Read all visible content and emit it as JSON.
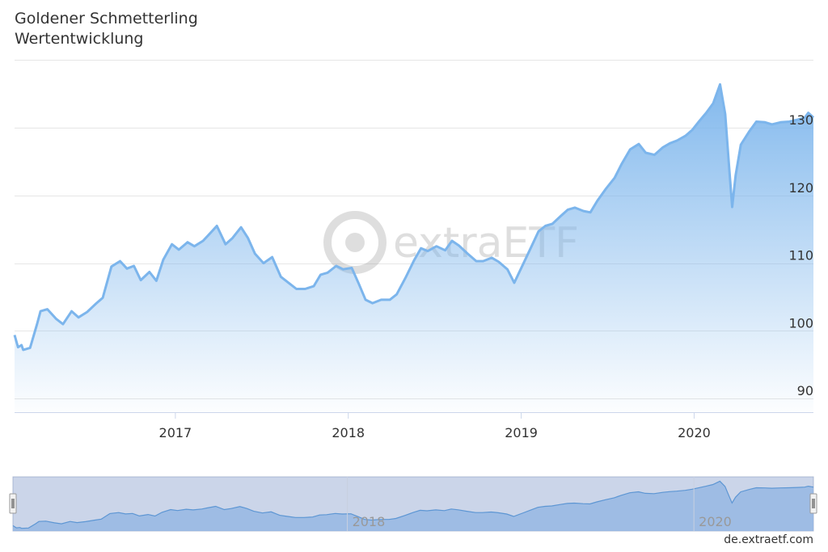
{
  "chart_data": {
    "type": "area",
    "title": "Goldener Schmetterling",
    "subtitle": "Wertentwicklung",
    "xlim": [
      2016.07,
      2020.69
    ],
    "ylim": [
      88,
      138
    ],
    "y_ticks": [
      90,
      100,
      110,
      120,
      130
    ],
    "x_ticks": [
      2017,
      2018,
      2019,
      2020
    ],
    "grid": true,
    "watermark": "extraETF",
    "credits": "de.extraetf.com",
    "series": [
      {
        "color": "#7cb5ec",
        "points": [
          [
            2016.07,
            99.4
          ],
          [
            2016.09,
            97.6
          ],
          [
            2016.11,
            97.9
          ],
          [
            2016.12,
            97.2
          ],
          [
            2016.16,
            97.5
          ],
          [
            2016.2,
            101.0
          ],
          [
            2016.22,
            102.9
          ],
          [
            2016.26,
            103.2
          ],
          [
            2016.31,
            101.8
          ],
          [
            2016.35,
            101.0
          ],
          [
            2016.4,
            102.9
          ],
          [
            2016.44,
            102.0
          ],
          [
            2016.49,
            102.8
          ],
          [
            2016.54,
            104.0
          ],
          [
            2016.58,
            104.9
          ],
          [
            2016.63,
            109.5
          ],
          [
            2016.68,
            110.3
          ],
          [
            2016.72,
            109.2
          ],
          [
            2016.76,
            109.6
          ],
          [
            2016.8,
            107.5
          ],
          [
            2016.85,
            108.7
          ],
          [
            2016.89,
            107.4
          ],
          [
            2016.93,
            110.5
          ],
          [
            2016.98,
            112.8
          ],
          [
            2017.02,
            112.0
          ],
          [
            2017.07,
            113.1
          ],
          [
            2017.11,
            112.5
          ],
          [
            2017.16,
            113.3
          ],
          [
            2017.2,
            114.4
          ],
          [
            2017.24,
            115.5
          ],
          [
            2017.29,
            112.8
          ],
          [
            2017.33,
            113.7
          ],
          [
            2017.38,
            115.3
          ],
          [
            2017.42,
            113.7
          ],
          [
            2017.46,
            111.4
          ],
          [
            2017.51,
            110.0
          ],
          [
            2017.56,
            110.9
          ],
          [
            2017.61,
            108.0
          ],
          [
            2017.66,
            107.0
          ],
          [
            2017.7,
            106.2
          ],
          [
            2017.75,
            106.2
          ],
          [
            2017.8,
            106.6
          ],
          [
            2017.84,
            108.3
          ],
          [
            2017.88,
            108.6
          ],
          [
            2017.93,
            109.6
          ],
          [
            2017.97,
            109.1
          ],
          [
            2018.02,
            109.3
          ],
          [
            2018.06,
            107.0
          ],
          [
            2018.1,
            104.6
          ],
          [
            2018.14,
            104.1
          ],
          [
            2018.19,
            104.6
          ],
          [
            2018.24,
            104.6
          ],
          [
            2018.28,
            105.4
          ],
          [
            2018.33,
            107.8
          ],
          [
            2018.38,
            110.4
          ],
          [
            2018.42,
            112.2
          ],
          [
            2018.46,
            111.8
          ],
          [
            2018.51,
            112.5
          ],
          [
            2018.56,
            111.9
          ],
          [
            2018.6,
            113.3
          ],
          [
            2018.64,
            112.6
          ],
          [
            2018.69,
            111.4
          ],
          [
            2018.74,
            110.3
          ],
          [
            2018.78,
            110.3
          ],
          [
            2018.83,
            110.8
          ],
          [
            2018.87,
            110.2
          ],
          [
            2018.92,
            109.1
          ],
          [
            2018.96,
            107.1
          ],
          [
            2019.01,
            109.8
          ],
          [
            2019.06,
            112.5
          ],
          [
            2019.1,
            114.7
          ],
          [
            2019.14,
            115.5
          ],
          [
            2019.18,
            115.8
          ],
          [
            2019.23,
            117.0
          ],
          [
            2019.27,
            117.9
          ],
          [
            2019.31,
            118.2
          ],
          [
            2019.36,
            117.7
          ],
          [
            2019.4,
            117.5
          ],
          [
            2019.44,
            119.2
          ],
          [
            2019.49,
            121.0
          ],
          [
            2019.54,
            122.6
          ],
          [
            2019.58,
            124.6
          ],
          [
            2019.63,
            126.8
          ],
          [
            2019.68,
            127.6
          ],
          [
            2019.72,
            126.3
          ],
          [
            2019.77,
            126.0
          ],
          [
            2019.82,
            127.1
          ],
          [
            2019.86,
            127.7
          ],
          [
            2019.9,
            128.1
          ],
          [
            2019.95,
            128.8
          ],
          [
            2019.99,
            129.7
          ],
          [
            2020.03,
            131.0
          ],
          [
            2020.07,
            132.2
          ],
          [
            2020.11,
            133.6
          ],
          [
            2020.15,
            136.4
          ],
          [
            2020.18,
            132.0
          ],
          [
            2020.2,
            125.0
          ],
          [
            2020.22,
            118.3
          ],
          [
            2020.24,
            123.0
          ],
          [
            2020.27,
            127.5
          ],
          [
            2020.32,
            129.5
          ],
          [
            2020.36,
            130.9
          ],
          [
            2020.41,
            130.8
          ],
          [
            2020.45,
            130.5
          ],
          [
            2020.5,
            130.8
          ],
          [
            2020.55,
            130.9
          ],
          [
            2020.6,
            131.2
          ],
          [
            2020.64,
            131.5
          ],
          [
            2020.66,
            132.2
          ],
          [
            2020.69,
            131.5
          ]
        ]
      }
    ],
    "navigator": {
      "x_ticks": [
        2018,
        2020
      ]
    }
  }
}
